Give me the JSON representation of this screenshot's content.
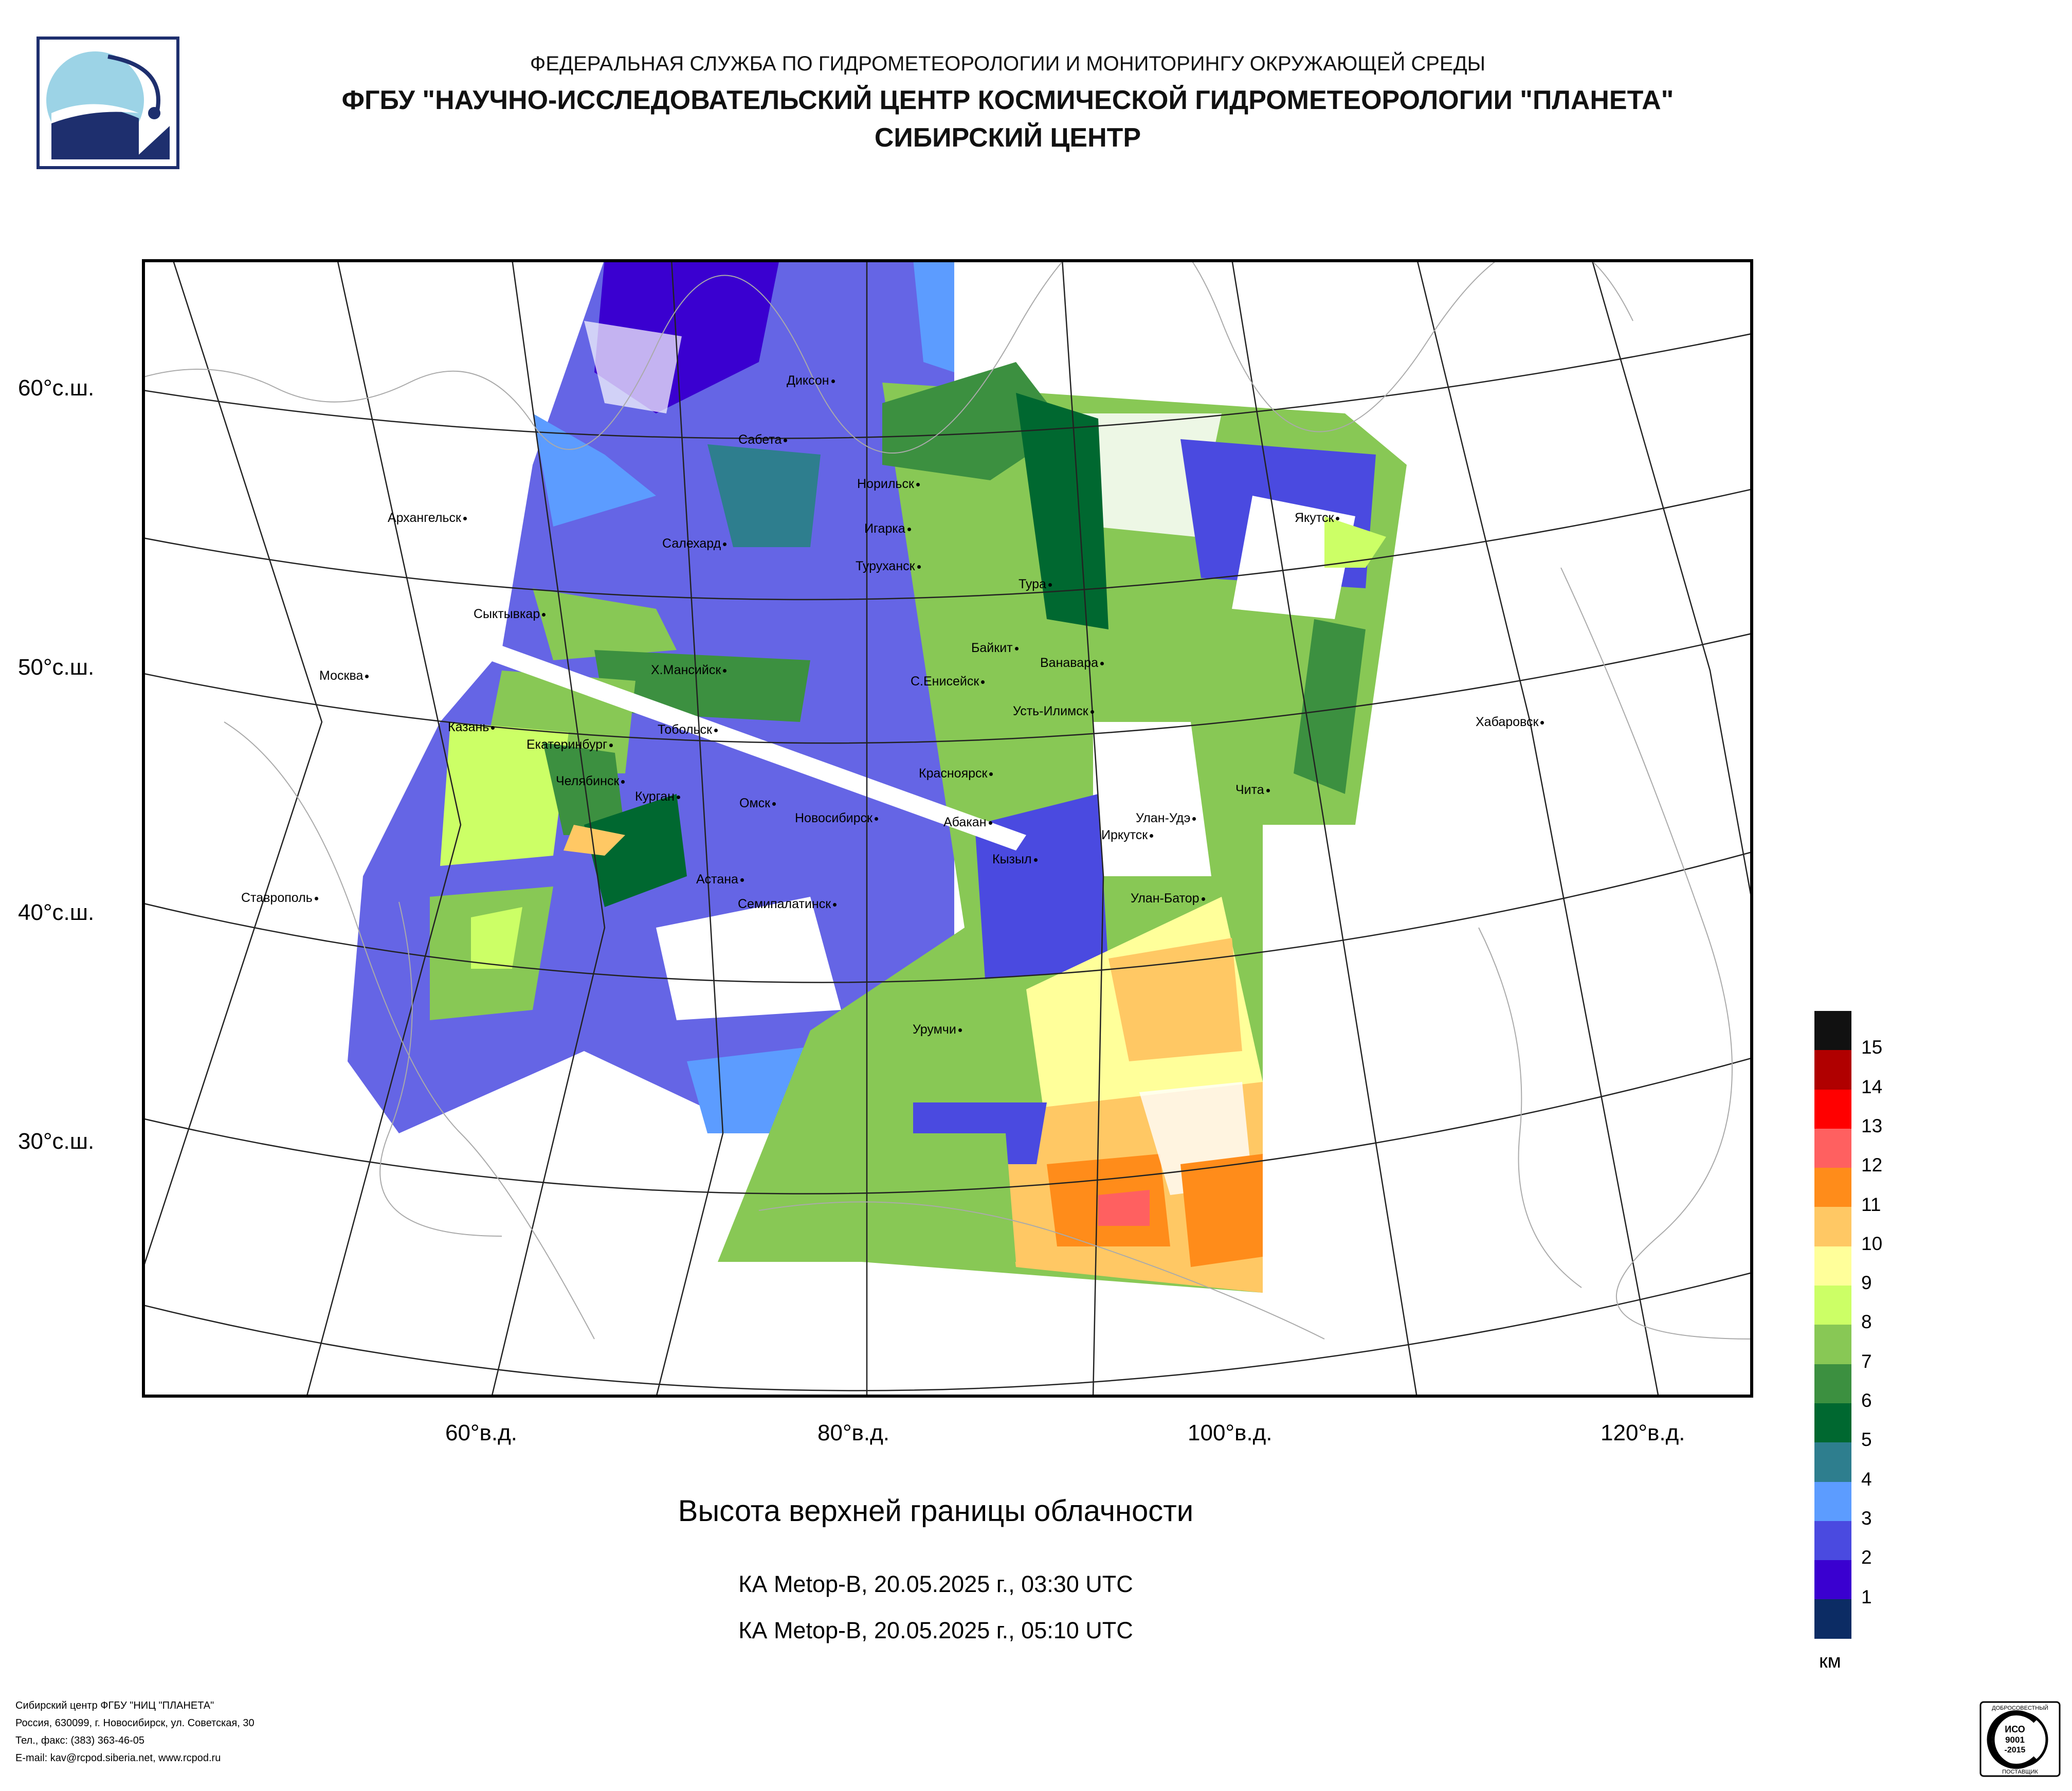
{
  "header": {
    "line1": "ФЕДЕРАЛЬНАЯ СЛУЖБА ПО ГИДРОМЕТЕОРОЛОГИИ И МОНИТОРИНГУ ОКРУЖАЮЩЕЙ СРЕДЫ",
    "line2": "ФГБУ \"НАУЧНО-ИССЛЕДОВАТЕЛЬСКИЙ ЦЕНТР КОСМИЧЕСКОЙ ГИДРОМЕТЕОРОЛОГИИ \"ПЛАНЕТА\"",
    "line3": "СИБИРСКИЙ ЦЕНТР"
  },
  "map": {
    "lat_labels": [
      "60°с.ш.",
      "50°с.ш.",
      "40°с.ш.",
      "30°с.ш."
    ],
    "lon_labels": [
      "60°в.д.",
      "80°в.д.",
      "100°в.д.",
      "120°в.д."
    ],
    "cities": [
      "Диксон",
      "Сабета",
      "Норильск",
      "Игарка",
      "Туруханск",
      "Салехард",
      "Архангельск",
      "Якутск",
      "Тура",
      "Сыктывкар",
      "Байкит",
      "Ванавара",
      "Х.Мансийск",
      "С.Енисейск",
      "Усть-Илимск",
      "Москва",
      "Казань",
      "Тобольск",
      "Хабаровск",
      "Екатеринбург",
      "Челябинск",
      "Курган",
      "Омск",
      "Новосибирск",
      "Красноярск",
      "Чита",
      "Абакан",
      "Улан-Удэ",
      "Иркутск",
      "Кызыл",
      "Астана",
      "Семипалатинск",
      "Улан-Батор",
      "Ставрополь",
      "Урумчи"
    ]
  },
  "caption": {
    "title": "Высота верхней границы облачности",
    "pass1": "КА Metop-B, 20.05.2025 г., 03:30 UTC",
    "pass2": "КА Metop-B, 20.05.2025 г., 05:10 UTC"
  },
  "legend": {
    "unit": "км",
    "labels": [
      "15",
      "14",
      "13",
      "12",
      "11",
      "10",
      "9",
      "8",
      "7",
      "6",
      "5",
      "4",
      "3",
      "2",
      "1"
    ],
    "colors": [
      "#111111",
      "#b00000",
      "#ff0000",
      "#ff6060",
      "#ff8c1a",
      "#ffc864",
      "#ffff9a",
      "#ccff66",
      "#88c855",
      "#3c9040",
      "#006830",
      "#2e7e8e",
      "#5c9cff",
      "#4a4ae0",
      "#3a00d0",
      "#0c2c64"
    ]
  },
  "footer": {
    "lines": [
      "Сибирский центр ФГБУ \"НИЦ \"ПЛАНЕТА\"",
      "Россия, 630099, г. Новосибирск, ул. Советская, 30",
      "Тел., факс: (383) 363-46-05",
      "E-mail: kav@rcpod.siberia.net, www.rcpod.ru"
    ],
    "iso_badge": [
      "ДОБРОСОВЕСТНЫЙ",
      "ИСО",
      "9001",
      "-2015",
      "ПОСТАВЩИК"
    ]
  }
}
